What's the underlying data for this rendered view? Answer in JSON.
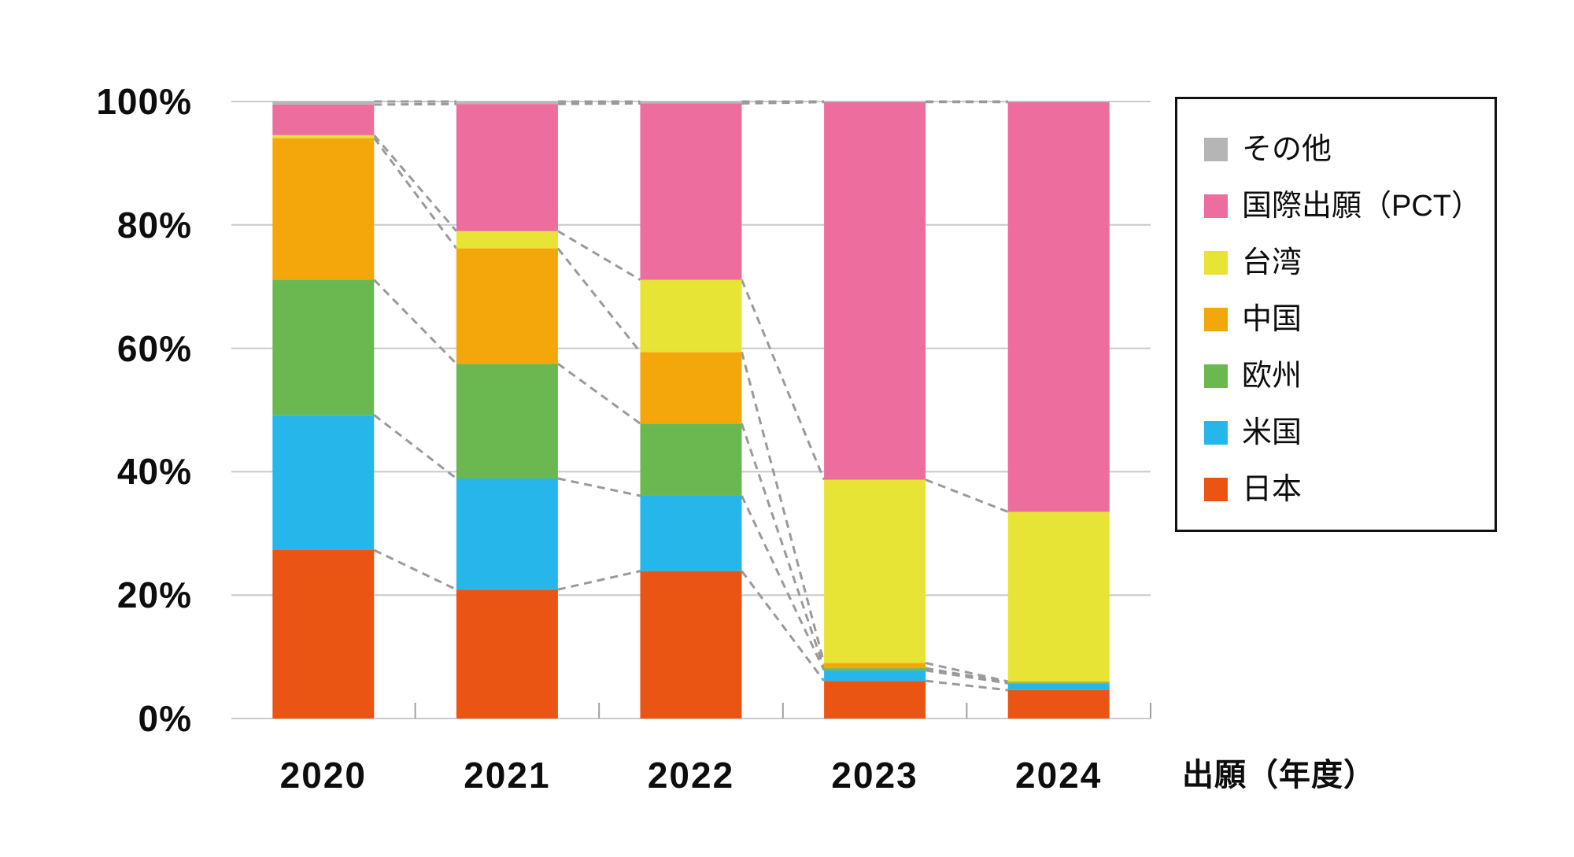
{
  "chart_data": {
    "type": "bar",
    "variant": "stacked-100-percent",
    "title": "",
    "xlabel": "出願（年度）",
    "ylabel": "",
    "ylim": [
      0,
      100
    ],
    "grid": true,
    "legend_position": "right-outside",
    "categories": [
      "2020",
      "2021",
      "2022",
      "2023",
      "2024"
    ],
    "series": [
      {
        "name": "日本",
        "color": "#ea5514",
        "values": [
          27.3,
          20.9,
          23.9,
          6.1,
          4.6
        ]
      },
      {
        "name": "米国",
        "color": "#26b7ea",
        "values": [
          21.9,
          18.0,
          12.2,
          1.7,
          1.1
        ]
      },
      {
        "name": "欧州",
        "color": "#6cb850",
        "values": [
          21.9,
          18.6,
          11.7,
          0.35,
          0.15
        ]
      },
      {
        "name": "中国",
        "color": "#f4a70b",
        "values": [
          23.0,
          18.7,
          11.6,
          0.85,
          0.15
        ]
      },
      {
        "name": "台湾",
        "color": "#e8e435",
        "values": [
          0.45,
          2.8,
          11.7,
          29.7,
          27.5
        ]
      },
      {
        "name": "国際出願（PCT）",
        "color": "#ec6d9e",
        "values": [
          4.95,
          20.6,
          28.6,
          61.2,
          66.4
        ]
      },
      {
        "name": "その他",
        "color": "#b5b5b6",
        "values": [
          0.5,
          0.4,
          0.3,
          0.1,
          0.1
        ]
      }
    ],
    "y_tick_labels_top_to_bottom": [
      "100%",
      "80%",
      "60%",
      "40%",
      "20%",
      "0%"
    ],
    "annotations": "dashed gray connector lines link each stack boundary between adjacent bars"
  },
  "axis": {
    "x_label": "出願（年度）",
    "y_ticks_percent": [
      0,
      20,
      40,
      60,
      80,
      100
    ]
  },
  "legend": {
    "items": [
      {
        "label": "その他",
        "color": "#b5b5b6"
      },
      {
        "label": "国際出願（PCT）",
        "color": "#ec6d9e"
      },
      {
        "label": "台湾",
        "color": "#e8e435"
      },
      {
        "label": "中国",
        "color": "#f4a70b"
      },
      {
        "label": "欧州",
        "color": "#6cb850"
      },
      {
        "label": "米国",
        "color": "#26b7ea"
      },
      {
        "label": "日本",
        "color": "#ea5514"
      }
    ]
  },
  "colors": {
    "background": "#ffffff",
    "gridline": "#cacaca",
    "axis_tick": "#a0a0a0",
    "connector": "#9a9a9a",
    "legend_border": "#111111",
    "text": "#0d0d0d"
  }
}
